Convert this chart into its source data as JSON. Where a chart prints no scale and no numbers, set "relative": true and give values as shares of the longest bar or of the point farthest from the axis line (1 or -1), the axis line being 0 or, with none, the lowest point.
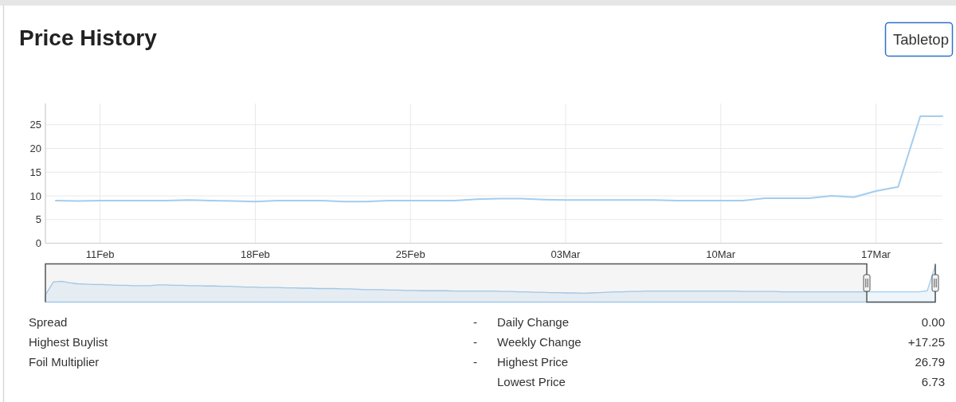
{
  "chart_data": [
    {
      "type": "line",
      "title": "Price History",
      "annotations": [
        "Tabletop"
      ],
      "color": "#a3cdee",
      "categories": [
        null,
        null,
        "11Feb",
        null,
        null,
        null,
        null,
        null,
        null,
        "18Feb",
        null,
        null,
        null,
        null,
        null,
        null,
        "25Feb",
        null,
        null,
        null,
        null,
        null,
        null,
        "03Mar",
        null,
        null,
        null,
        null,
        null,
        null,
        "10Mar",
        null,
        null,
        null,
        null,
        null,
        null,
        "17Mar",
        null,
        null,
        null
      ],
      "values": [
        9.0,
        8.9,
        9.0,
        9.0,
        9.0,
        9.0,
        9.1,
        9.0,
        8.9,
        8.8,
        9.0,
        9.0,
        9.0,
        8.8,
        8.8,
        9.0,
        9.0,
        9.0,
        9.0,
        9.3,
        9.4,
        9.4,
        9.2,
        9.1,
        9.1,
        9.1,
        9.1,
        9.1,
        9.0,
        9.0,
        9.0,
        9.0,
        9.5,
        9.5,
        9.5,
        10.0,
        9.7,
        11.0,
        11.9,
        26.8,
        26.8
      ],
      "ylim": [
        0,
        29.5
      ],
      "yticks": [
        0,
        5,
        10,
        15,
        20,
        25
      ],
      "grid": true
    },
    {
      "type": "area",
      "relative": true,
      "color": "#a3cdee",
      "categories": [
        null,
        null,
        null,
        null,
        null,
        null,
        null,
        null,
        null,
        null,
        null,
        null,
        null,
        null,
        null,
        null,
        null,
        null,
        null,
        null,
        null,
        null,
        null,
        null,
        null,
        null,
        null,
        null,
        null,
        null,
        null,
        null,
        null,
        null,
        null,
        null,
        null,
        null,
        null,
        null,
        null,
        null,
        null,
        null,
        null,
        null,
        null,
        null,
        null,
        null,
        null,
        null,
        null,
        null,
        null,
        null,
        null,
        null,
        null,
        null,
        null,
        null,
        null,
        null,
        null,
        null,
        null,
        null,
        null,
        null,
        null,
        null,
        null,
        null,
        null,
        null,
        null,
        null,
        null,
        null,
        null,
        null,
        null,
        null,
        null,
        null,
        null,
        null,
        null,
        null,
        null,
        null,
        null,
        null,
        null,
        null,
        null,
        null,
        null,
        null,
        null,
        null,
        null,
        null,
        null,
        null,
        null,
        null,
        null,
        null,
        null,
        null
      ],
      "values": [
        0.2,
        0.55,
        0.57,
        0.53,
        0.5,
        0.49,
        0.48,
        0.48,
        0.47,
        0.46,
        0.46,
        0.45,
        0.45,
        0.45,
        0.47,
        0.47,
        0.46,
        0.46,
        0.45,
        0.45,
        0.44,
        0.44,
        0.43,
        0.43,
        0.42,
        0.41,
        0.41,
        0.4,
        0.4,
        0.4,
        0.39,
        0.39,
        0.38,
        0.38,
        0.37,
        0.37,
        0.37,
        0.36,
        0.36,
        0.35,
        0.34,
        0.34,
        0.34,
        0.33,
        0.33,
        0.32,
        0.32,
        0.31,
        0.31,
        0.31,
        0.31,
        0.3,
        0.3,
        0.3,
        0.3,
        0.3,
        0.3,
        0.29,
        0.29,
        0.28,
        0.28,
        0.27,
        0.27,
        0.26,
        0.26,
        0.25,
        0.25,
        0.24,
        0.25,
        0.26,
        0.27,
        0.28,
        0.28,
        0.29,
        0.29,
        0.3,
        0.3,
        0.3,
        0.3,
        0.3,
        0.3,
        0.3,
        0.3,
        0.3,
        0.3,
        0.3,
        0.3,
        0.29,
        0.29,
        0.29,
        0.29,
        0.29,
        0.28,
        0.28,
        0.28,
        0.28,
        0.28,
        0.28,
        0.28,
        0.28,
        0.28,
        0.28,
        0.28,
        0.28,
        0.28,
        0.28,
        0.28,
        0.28,
        0.28,
        0.28,
        0.31,
        1
      ]
    },
    {
      "type": "other",
      "annotations": [
        "Spread",
        "-",
        "Highest Buylist",
        "-",
        "Foil Multiplier",
        "-"
      ]
    },
    {
      "type": "other",
      "annotations": [
        "Daily Change",
        "0.00",
        "Weekly Change",
        "+17.25",
        "Highest Price",
        "26.79",
        "Lowest Price",
        "6.73"
      ]
    }
  ]
}
